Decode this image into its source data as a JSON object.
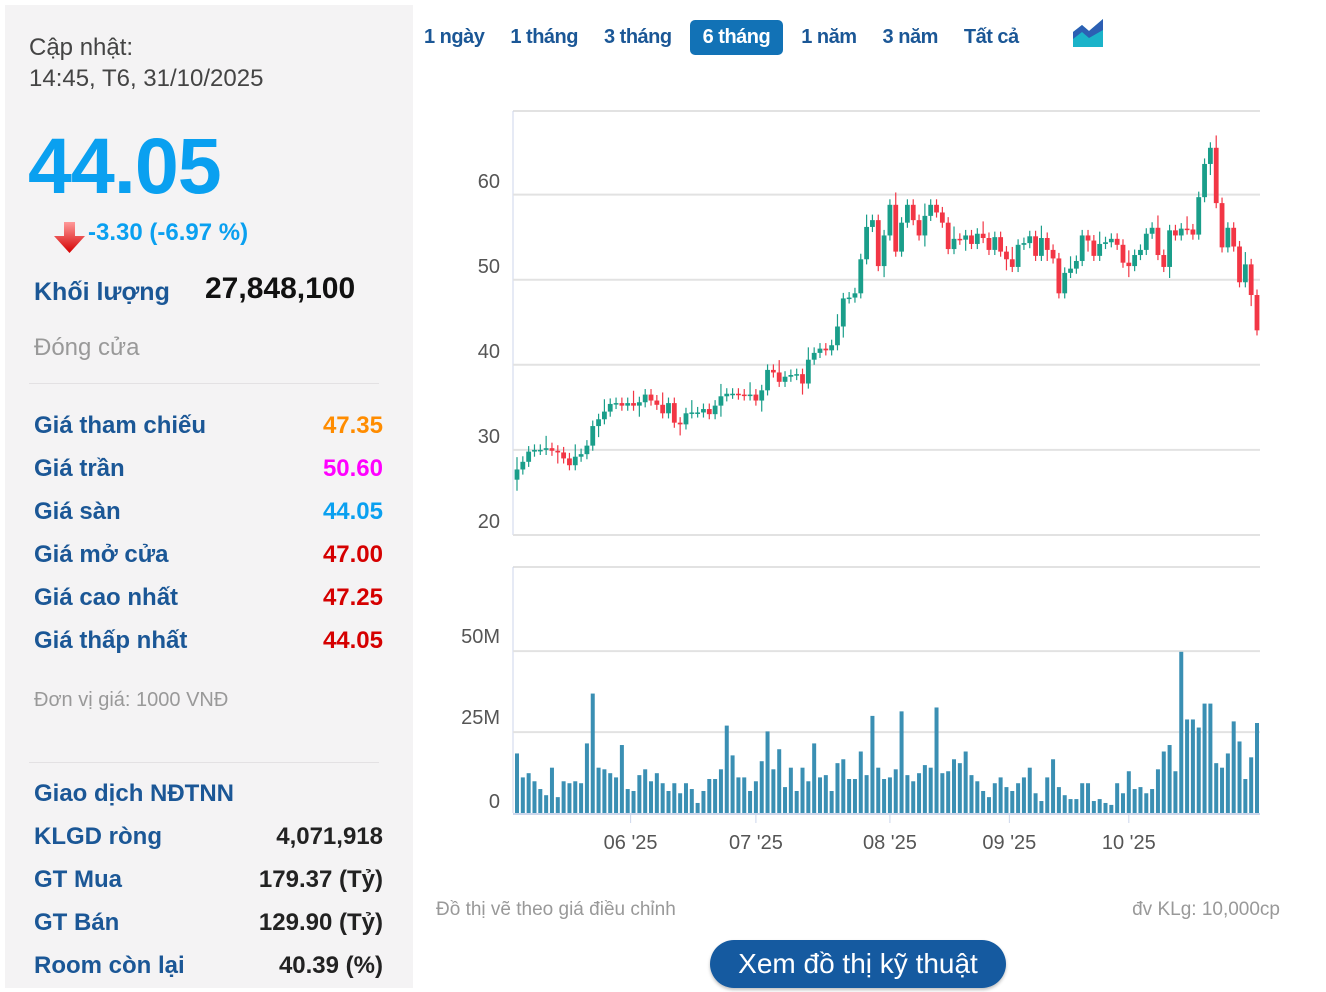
{
  "summary": {
    "update_label": "Cập nhật:",
    "update_time": "14:45, T6, 31/10/2025",
    "price": "44.05",
    "change": "-3.30 (-6.97 %)",
    "volume_label": "Khối lượng",
    "volume": "27,848,100",
    "status": "Đóng cửa"
  },
  "prices": [
    {
      "label": "Giá tham chiếu",
      "value": "47.35",
      "color": "#ff8c00"
    },
    {
      "label": "Giá trần",
      "value": "50.60",
      "color": "#ff00ff"
    },
    {
      "label": "Giá sàn",
      "value": "44.05",
      "color": "#0aa0f0"
    },
    {
      "label": "Giá mở cửa",
      "value": "47.00",
      "color": "#d50000"
    },
    {
      "label": "Giá cao nhất",
      "value": "47.25",
      "color": "#d50000"
    },
    {
      "label": "Giá thấp nhất",
      "value": "44.05",
      "color": "#d50000"
    }
  ],
  "unit_note": "Đơn vị giá: 1000 VNĐ",
  "foreign": {
    "title": "Giao dịch NĐTNN",
    "rows": [
      {
        "label": "KLGD ròng",
        "value": "4,071,918"
      },
      {
        "label": "GT Mua",
        "value": "179.37 (Tỷ)"
      },
      {
        "label": "GT Bán",
        "value": "129.90 (Tỷ)"
      },
      {
        "label": "Room còn lại",
        "value": "40.39 (%)"
      }
    ]
  },
  "tabs": [
    {
      "label": "1 ngày",
      "active": false
    },
    {
      "label": "1 tháng",
      "active": false
    },
    {
      "label": "3 tháng",
      "active": false
    },
    {
      "label": "6 tháng",
      "active": true
    },
    {
      "label": "1 năm",
      "active": false
    },
    {
      "label": "3 năm",
      "active": false
    },
    {
      "label": "Tất cả",
      "active": false
    }
  ],
  "chart_icon": "area-chart-icon",
  "footer": {
    "note": "Đồ thị vẽ theo giá điều chỉnh",
    "volume_unit": "đv KLg: 10,000cp",
    "button": "Xem đồ thị kỹ thuật"
  },
  "colors": {
    "up": "#1a9e8a",
    "down": "#f23645",
    "volume": "#3a8fb3",
    "grid": "#e2e2e2"
  },
  "chart_data": [
    {
      "type": "candlestick",
      "first_open": 26.5,
      "ylim": [
        20,
        70
      ],
      "yticks": [
        "20",
        "30",
        "40",
        "50",
        "60"
      ],
      "ytick_values": [
        20,
        30,
        40,
        50,
        60
      ],
      "grid": true,
      "closes": [
        27.7,
        28.6,
        29.8,
        30,
        30,
        30.2,
        29.9,
        29.7,
        29,
        28.2,
        29.2,
        29.5,
        30.5,
        32.8,
        33.6,
        34.5,
        35.4,
        35.5,
        35.2,
        35.5,
        35.2,
        35.6,
        36.5,
        35.8,
        35.3,
        34.3,
        35.5,
        33.2,
        33.0,
        34.3,
        34.4,
        34.4,
        34.8,
        34.2,
        35.2,
        36.3,
        36.6,
        36.6,
        36.5,
        36.4,
        36.5,
        35.8,
        37,
        39.4,
        39.1,
        38.0,
        38.6,
        38.8,
        38.9,
        37.8,
        40.6,
        41.4,
        41.9,
        41.7,
        42.3,
        44.5,
        47.8,
        47.9,
        48.4,
        52.4,
        56.2,
        57,
        51.6,
        55.2,
        58.8,
        53.3,
        56.7,
        58.8,
        57,
        55.2,
        57.5,
        58.8,
        57.9,
        56.7,
        53.6,
        54.8,
        54.7,
        55.2,
        54.2,
        55.4,
        54.9,
        53.5,
        55,
        53.3,
        52.4,
        51.5,
        54.1,
        54.3,
        55.1,
        52.8,
        54.9,
        53.5,
        52.5,
        48.4,
        50.8,
        51.3,
        52.2,
        55.2,
        54.6,
        52.8,
        54.2,
        54.4,
        54.8,
        54.1,
        52.0,
        51.6,
        52.9,
        53.5,
        55.4,
        56.1,
        52.9,
        51.5,
        55.8,
        55.2,
        56,
        55.9,
        55.3,
        59.7,
        63.6,
        65.5,
        59,
        53.8,
        56.1,
        53.9,
        49.7,
        51.8,
        48.2,
        44.05
      ]
    },
    {
      "type": "bar",
      "ylabel_unit": "M",
      "ylim": [
        0,
        76
      ],
      "yticks": [
        "0",
        "25M",
        "50M"
      ],
      "ytick_values": [
        0,
        25,
        50
      ],
      "xticks": [
        {
          "label": "06 '25",
          "index": 19.5
        },
        {
          "label": "07 '25",
          "index": 41
        },
        {
          "label": "08 '25",
          "index": 64
        },
        {
          "label": "09 '25",
          "index": 84.5
        },
        {
          "label": "10 '25",
          "index": 105
        }
      ],
      "values": [
        18.4,
        11,
        12.3,
        9.8,
        7.4,
        5.5,
        14,
        4.9,
        9.8,
        9.2,
        9.8,
        9.2,
        21.5,
        36.9,
        14,
        13.5,
        12.3,
        11,
        21,
        7.4,
        6.8,
        11.7,
        13.5,
        9.8,
        12.3,
        9.2,
        6.8,
        9.2,
        6.1,
        9.2,
        7.4,
        3.1,
        6.8,
        10.5,
        10.5,
        13.5,
        27,
        17.8,
        11,
        11,
        6.8,
        9.8,
        16,
        25.2,
        13.5,
        19.7,
        8,
        14,
        6.8,
        14,
        9.8,
        21.5,
        11,
        11.7,
        6.8,
        15.4,
        16.6,
        10.5,
        10.5,
        19,
        11.7,
        30,
        14,
        10.5,
        11,
        13.5,
        31.4,
        11.7,
        9.8,
        12.3,
        14.8,
        14,
        32.6,
        12.3,
        12.9,
        16.6,
        15.4,
        19,
        11.7,
        9.8,
        6.8,
        4.9,
        9.2,
        11,
        8,
        6.8,
        9.2,
        11,
        14,
        6.1,
        3.7,
        11,
        16.6,
        8,
        5.5,
        4.3,
        4.3,
        9.2,
        9.2,
        3.7,
        4.3,
        3.1,
        2.5,
        9.2,
        6.1,
        12.9,
        7.4,
        8,
        6.1,
        7.4,
        13.5,
        19,
        21,
        12.9,
        49.8,
        28.9,
        28.9,
        26.4,
        33.8,
        33.8,
        15.4,
        14,
        18.4,
        28.3,
        22.1,
        10.5,
        17.2,
        27.8
      ]
    }
  ]
}
